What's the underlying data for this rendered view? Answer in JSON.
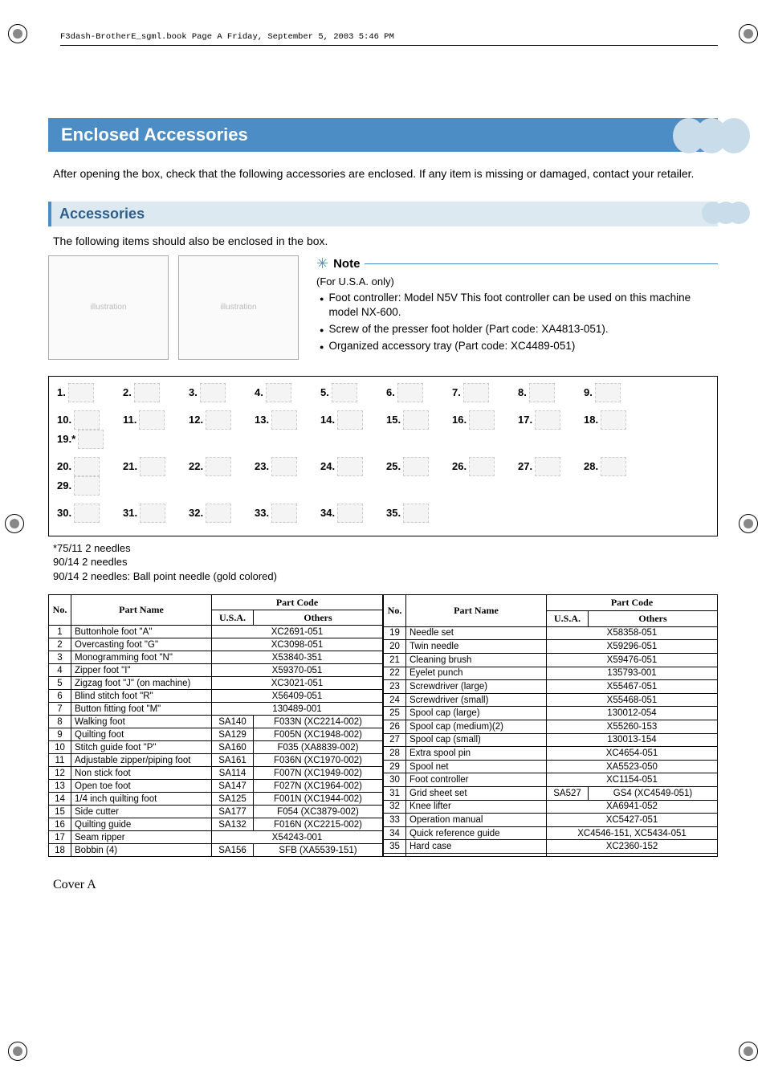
{
  "header_line": "F3dash-BrotherE_sgml.book  Page A  Friday, September 5, 2003  5:46 PM",
  "title": "Enclosed Accessories",
  "intro": "After opening the box, check that the following accessories are enclosed. If any item is missing or damaged, contact your retailer.",
  "subheader": "Accessories",
  "sub_intro": "The following items should also be enclosed in the box.",
  "note": {
    "label": "Note",
    "sub": "(For U.S.A. only)",
    "items": [
      "Foot controller: Model N5V This foot controller can be used on this machine model NX-600.",
      "Screw of the presser foot holder (Part code: XA4813-051).",
      "Organized accessory tray (Part code: XC4489-051)"
    ]
  },
  "icon_numbers": [
    [
      "1.",
      "2.",
      "3.",
      "4.",
      "5.",
      "6.",
      "7.",
      "8.",
      "9."
    ],
    [
      "10.",
      "11.",
      "12.",
      "13.",
      "14.",
      "15.",
      "16.",
      "17.",
      "18.",
      "19.*"
    ],
    [
      "20.",
      "21.",
      "22.",
      "23.",
      "24.",
      "25.",
      "26.",
      "27.",
      "28.",
      "29."
    ],
    [
      "30.",
      "31.",
      "32.",
      "33.",
      "34.",
      "35."
    ]
  ],
  "footnotes": [
    "*75/11 2 needles",
    " 90/14 2 needles",
    " 90/14 2 needles: Ball point needle (gold colored)"
  ],
  "table_headers": {
    "no": "No.",
    "part_name": "Part Name",
    "part_code": "Part Code",
    "usa": "U.S.A.",
    "others": "Others"
  },
  "left_rows": [
    {
      "no": "1",
      "name": "Buttonhole foot \"A\"",
      "usa": "",
      "others": "XC2691-051",
      "span": true
    },
    {
      "no": "2",
      "name": "Overcasting foot \"G\"",
      "usa": "",
      "others": "XC3098-051",
      "span": true
    },
    {
      "no": "3",
      "name": "Monogramming foot \"N\"",
      "usa": "",
      "others": "X53840-351",
      "span": true
    },
    {
      "no": "4",
      "name": "Zipper foot \"I\"",
      "usa": "",
      "others": "X59370-051",
      "span": true
    },
    {
      "no": "5",
      "name": "Zigzag foot \"J\" (on machine)",
      "usa": "",
      "others": "XC3021-051",
      "span": true
    },
    {
      "no": "6",
      "name": "Blind stitch foot \"R\"",
      "usa": "",
      "others": "X56409-051",
      "span": true
    },
    {
      "no": "7",
      "name": "Button fitting foot \"M\"",
      "usa": "",
      "others": "130489-001",
      "span": true
    },
    {
      "no": "8",
      "name": "Walking foot",
      "usa": "SA140",
      "others": "F033N (XC2214-002)",
      "span": false
    },
    {
      "no": "9",
      "name": "Quilting foot",
      "usa": "SA129",
      "others": "F005N (XC1948-002)",
      "span": false
    },
    {
      "no": "10",
      "name": "Stitch guide foot \"P\"",
      "usa": "SA160",
      "others": "F035 (XA8839-002)",
      "span": false
    },
    {
      "no": "11",
      "name": "Adjustable zipper/piping foot",
      "usa": "SA161",
      "others": "F036N (XC1970-002)",
      "span": false
    },
    {
      "no": "12",
      "name": "Non stick foot",
      "usa": "SA114",
      "others": "F007N (XC1949-002)",
      "span": false
    },
    {
      "no": "13",
      "name": "Open toe foot",
      "usa": "SA147",
      "others": "F027N (XC1964-002)",
      "span": false
    },
    {
      "no": "14",
      "name": "1/4 inch quilting foot",
      "usa": "SA125",
      "others": "F001N (XC1944-002)",
      "span": false
    },
    {
      "no": "15",
      "name": "Side cutter",
      "usa": "SA177",
      "others": "F054 (XC3879-002)",
      "span": false
    },
    {
      "no": "16",
      "name": "Quilting guide",
      "usa": "SA132",
      "others": "F016N (XC2215-002)",
      "span": false
    },
    {
      "no": "17",
      "name": "Seam ripper",
      "usa": "",
      "others": "X54243-001",
      "span": true
    },
    {
      "no": "18",
      "name": "Bobbin (4)",
      "usa": "SA156",
      "others": "SFB (XA5539-151)",
      "span": false
    }
  ],
  "right_rows": [
    {
      "no": "19",
      "name": "Needle set",
      "usa": "",
      "others": "X58358-051",
      "span": true
    },
    {
      "no": "20",
      "name": "Twin needle",
      "usa": "",
      "others": "X59296-051",
      "span": true
    },
    {
      "no": "21",
      "name": "Cleaning brush",
      "usa": "",
      "others": "X59476-051",
      "span": true
    },
    {
      "no": "22",
      "name": "Eyelet punch",
      "usa": "",
      "others": "135793-001",
      "span": true
    },
    {
      "no": "23",
      "name": "Screwdriver (large)",
      "usa": "",
      "others": "X55467-051",
      "span": true
    },
    {
      "no": "24",
      "name": "Screwdriver (small)",
      "usa": "",
      "others": "X55468-051",
      "span": true
    },
    {
      "no": "25",
      "name": "Spool cap (large)",
      "usa": "",
      "others": "130012-054",
      "span": true
    },
    {
      "no": "26",
      "name": "Spool cap (medium)(2)",
      "usa": "",
      "others": "X55260-153",
      "span": true
    },
    {
      "no": "27",
      "name": "Spool cap (small)",
      "usa": "",
      "others": "130013-154",
      "span": true
    },
    {
      "no": "28",
      "name": "Extra spool pin",
      "usa": "",
      "others": "XC4654-051",
      "span": true
    },
    {
      "no": "29",
      "name": "Spool net",
      "usa": "",
      "others": "XA5523-050",
      "span": true
    },
    {
      "no": "30",
      "name": "Foot controller",
      "usa": "",
      "others": "XC1154-051",
      "span": true
    },
    {
      "no": "31",
      "name": "Grid sheet set",
      "usa": "SA527",
      "others": "GS4 (XC4549-051)",
      "span": false
    },
    {
      "no": "32",
      "name": "Knee lifter",
      "usa": "",
      "others": "XA6941-052",
      "span": true
    },
    {
      "no": "33",
      "name": "Operation manual",
      "usa": "",
      "others": "XC5427-051",
      "span": true
    },
    {
      "no": "34",
      "name": "Quick reference guide",
      "usa": "",
      "others": "XC4546-151, XC5434-051",
      "span": true
    },
    {
      "no": "35",
      "name": "Hard case",
      "usa": "",
      "others": "XC2360-152",
      "span": true
    },
    {
      "no": "",
      "name": "",
      "usa": "",
      "others": "",
      "span": true,
      "empty": true
    }
  ],
  "footer": "Cover A",
  "colors": {
    "title_bg": "#4b8dc4",
    "bubble": "#c8dce9",
    "subheader_bg": "#dde9f0",
    "subheader_fg": "#2d5f8a"
  }
}
